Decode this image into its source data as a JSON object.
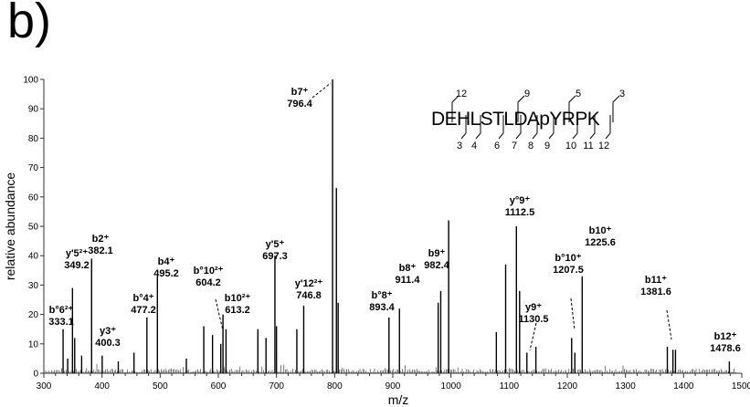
{
  "panel_label": "b)",
  "chart_data": {
    "type": "bar",
    "xlabel": "m/z",
    "ylabel": "relative abundance",
    "xlim": [
      300,
      1500
    ],
    "ylim": [
      0,
      100
    ],
    "xticks": [
      300,
      400,
      500,
      600,
      700,
      800,
      900,
      1000,
      1100,
      1200,
      1300,
      1400,
      1500
    ],
    "yticks": [
      0,
      10,
      20,
      30,
      40,
      50,
      60,
      70,
      80,
      90,
      100
    ],
    "peaks": [
      {
        "mz": 333.1,
        "intensity": 15
      },
      {
        "mz": 341,
        "intensity": 5
      },
      {
        "mz": 349.2,
        "intensity": 29
      },
      {
        "mz": 353,
        "intensity": 12
      },
      {
        "mz": 365,
        "intensity": 6
      },
      {
        "mz": 382.1,
        "intensity": 39
      },
      {
        "mz": 400.3,
        "intensity": 6
      },
      {
        "mz": 428,
        "intensity": 4
      },
      {
        "mz": 455,
        "intensity": 7
      },
      {
        "mz": 477.2,
        "intensity": 19
      },
      {
        "mz": 495.2,
        "intensity": 33
      },
      {
        "mz": 545,
        "intensity": 5
      },
      {
        "mz": 575,
        "intensity": 16
      },
      {
        "mz": 590,
        "intensity": 13
      },
      {
        "mz": 604.2,
        "intensity": 10
      },
      {
        "mz": 608,
        "intensity": 20
      },
      {
        "mz": 613.2,
        "intensity": 15
      },
      {
        "mz": 668,
        "intensity": 15
      },
      {
        "mz": 682,
        "intensity": 12
      },
      {
        "mz": 697.3,
        "intensity": 40
      },
      {
        "mz": 700,
        "intensity": 16
      },
      {
        "mz": 735,
        "intensity": 15
      },
      {
        "mz": 746.8,
        "intensity": 23
      },
      {
        "mz": 796.4,
        "intensity": 100
      },
      {
        "mz": 803,
        "intensity": 63
      },
      {
        "mz": 806,
        "intensity": 24
      },
      {
        "mz": 893.4,
        "intensity": 19
      },
      {
        "mz": 911.4,
        "intensity": 22
      },
      {
        "mz": 978,
        "intensity": 24
      },
      {
        "mz": 982.4,
        "intensity": 28
      },
      {
        "mz": 996,
        "intensity": 52
      },
      {
        "mz": 1078,
        "intensity": 14
      },
      {
        "mz": 1094,
        "intensity": 37
      },
      {
        "mz": 1112.5,
        "intensity": 50
      },
      {
        "mz": 1118,
        "intensity": 28
      },
      {
        "mz": 1130.5,
        "intensity": 7
      },
      {
        "mz": 1146,
        "intensity": 9
      },
      {
        "mz": 1207.5,
        "intensity": 12
      },
      {
        "mz": 1213,
        "intensity": 7
      },
      {
        "mz": 1225.6,
        "intensity": 33
      },
      {
        "mz": 1372,
        "intensity": 9
      },
      {
        "mz": 1381.6,
        "intensity": 8
      },
      {
        "mz": 1386,
        "intensity": 8
      },
      {
        "mz": 1478.6,
        "intensity": 4
      }
    ],
    "annotations": [
      {
        "ion": "b°6²⁺",
        "mz_label": "333.1",
        "mz": 333.1
      },
      {
        "ion": "y'5²⁺",
        "mz_label": "349.2",
        "mz": 349.2
      },
      {
        "ion": "b2⁺",
        "mz_label": "382.1",
        "mz": 382.1
      },
      {
        "ion": "y3⁺",
        "mz_label": "400.3",
        "mz": 400.3
      },
      {
        "ion": "b°4⁺",
        "mz_label": "477.2",
        "mz": 477.2
      },
      {
        "ion": "b4⁺",
        "mz_label": "495.2",
        "mz": 495.2
      },
      {
        "ion": "b°10²⁺",
        "mz_label": "604.2",
        "mz": 604.2
      },
      {
        "ion": "b10²⁺",
        "mz_label": "613.2",
        "mz": 613.2
      },
      {
        "ion": "y'5⁺",
        "mz_label": "697.3",
        "mz": 697.3
      },
      {
        "ion": "y'12²⁺",
        "mz_label": "746.8",
        "mz": 746.8
      },
      {
        "ion": "b7⁺",
        "mz_label": "796.4",
        "mz": 796.4
      },
      {
        "ion": "b°8⁺",
        "mz_label": "893.4",
        "mz": 893.4
      },
      {
        "ion": "b8⁺",
        "mz_label": "911.4",
        "mz": 911.4
      },
      {
        "ion": "b9⁺",
        "mz_label": "982.4",
        "mz": 982.4
      },
      {
        "ion": "y°9⁺",
        "mz_label": "1112.5",
        "mz": 1112.5
      },
      {
        "ion": "y9⁺",
        "mz_label": "1130.5",
        "mz": 1130.5
      },
      {
        "ion": "b°10⁺",
        "mz_label": "1207.5",
        "mz": 1207.5
      },
      {
        "ion": "b10⁺",
        "mz_label": "1225.6",
        "mz": 1225.6
      },
      {
        "ion": "b11⁺",
        "mz_label": "1381.6",
        "mz": 1381.6
      },
      {
        "ion": "b12⁺",
        "mz_label": "1478.6",
        "mz": 1478.6
      }
    ],
    "peptide": {
      "sequence": "DEHLSTLDApYRPK",
      "y_ions_top": [
        "12",
        "9",
        "5",
        "3"
      ],
      "b_ions_bottom": [
        "3",
        "4",
        "6",
        "7",
        "8",
        "9",
        "10",
        "11",
        "12"
      ]
    }
  }
}
